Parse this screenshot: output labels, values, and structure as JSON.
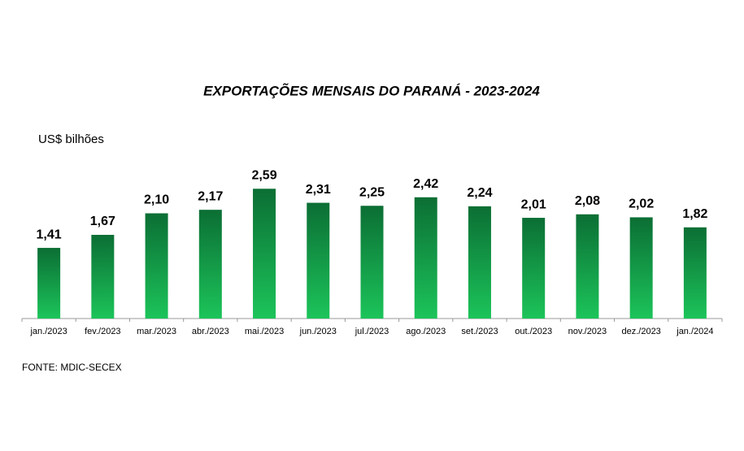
{
  "chart_data": {
    "type": "bar",
    "title": "EXPORTAÇÕES MENSAIS DO PARANÁ - 2023-2024",
    "y_label": "US$ bilhões",
    "source": "FONTE:  MDIC-SECEX",
    "categories": [
      "jan./2023",
      "fev./2023",
      "mar./2023",
      "abr./2023",
      "mai./2023",
      "jun./2023",
      "jul./2023",
      "ago./2023",
      "set./2023",
      "out./2023",
      "nov./2023",
      "dez./2023",
      "jan./2024"
    ],
    "values": [
      1.41,
      1.67,
      2.1,
      2.17,
      2.59,
      2.31,
      2.25,
      2.42,
      2.24,
      2.01,
      2.08,
      2.02,
      1.82
    ],
    "value_labels": [
      "1,41",
      "1,67",
      "2,10",
      "2,17",
      "2,59",
      "2,31",
      "2,25",
      "2,42",
      "2,24",
      "2,01",
      "2,08",
      "2,02",
      "1,82"
    ],
    "ylim": [
      0,
      3
    ]
  }
}
